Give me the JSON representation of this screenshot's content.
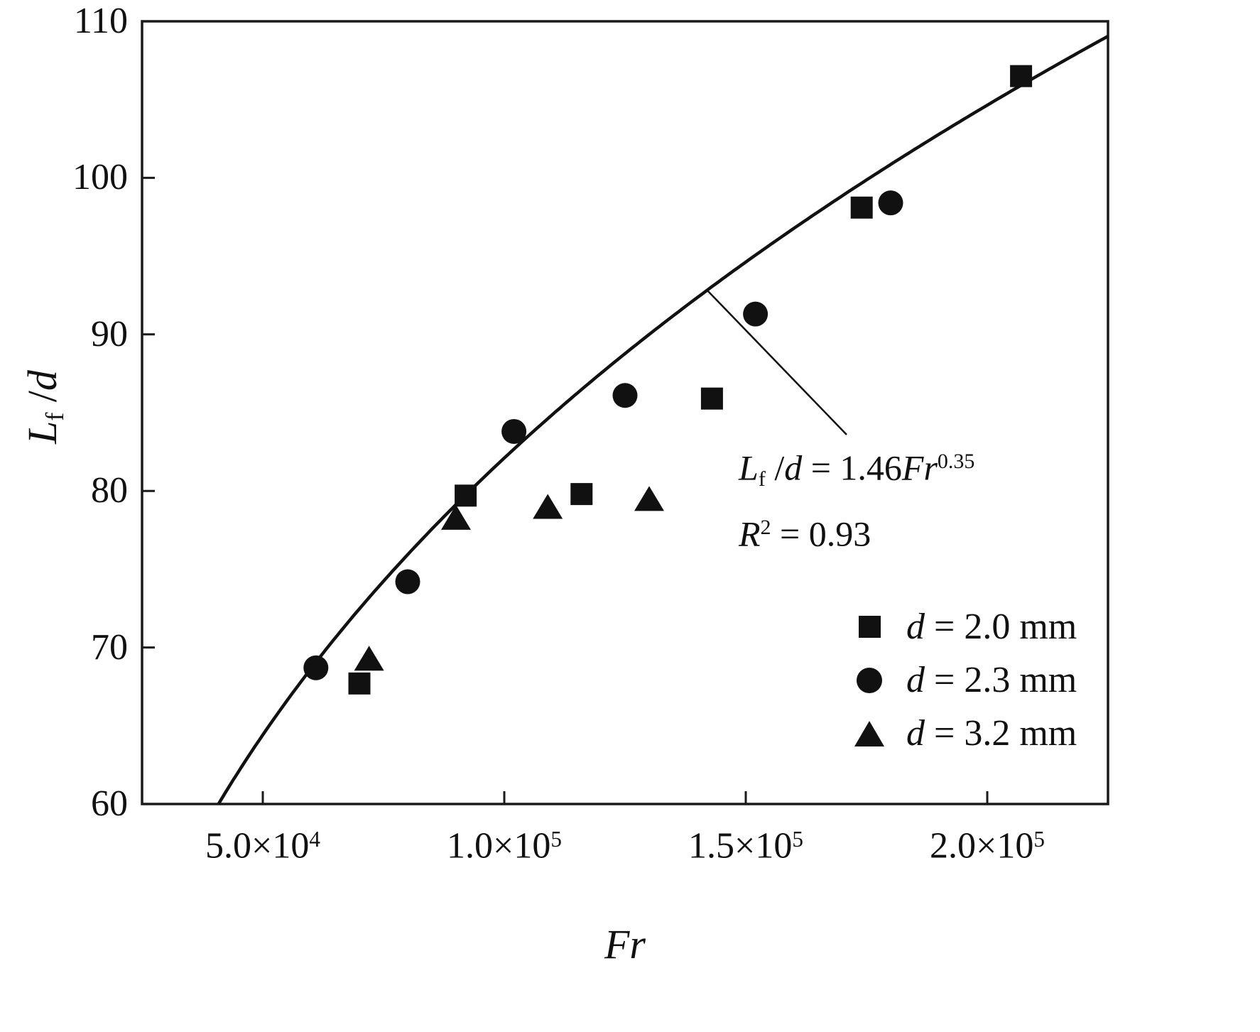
{
  "page": {
    "background": "#ffffff",
    "ink": "#111111"
  },
  "chart_data": {
    "type": "scatter",
    "title": "",
    "xlabel": "Fr",
    "ylabel": "Lf/d",
    "ylabel_parts": {
      "sym1": "L",
      "sub1": "f",
      "sep": " /",
      "sym2": "d"
    },
    "xlim": [
      25000,
      225000
    ],
    "ylim": [
      60,
      110
    ],
    "grid": false,
    "legend_position": "lower-right",
    "x_ticks": [
      {
        "value": 50000,
        "mantissa": "5.0×10",
        "exponent": "4"
      },
      {
        "value": 100000,
        "mantissa": "1.0×10",
        "exponent": "5"
      },
      {
        "value": 150000,
        "mantissa": "1.5×10",
        "exponent": "5"
      },
      {
        "value": 200000,
        "mantissa": "2.0×10",
        "exponent": "5"
      }
    ],
    "y_ticks": [
      60,
      70,
      80,
      90,
      100,
      110
    ],
    "series": [
      {
        "name": "d = 2.0 mm",
        "marker": "square",
        "points": [
          [
            70000,
            67.7
          ],
          [
            92000,
            79.7
          ],
          [
            116000,
            79.8
          ],
          [
            143000,
            85.9
          ],
          [
            174000,
            98.1
          ],
          [
            207000,
            106.5
          ]
        ]
      },
      {
        "name": "d = 2.3 mm",
        "marker": "circle",
        "points": [
          [
            61000,
            68.7
          ],
          [
            80000,
            74.2
          ],
          [
            102000,
            83.8
          ],
          [
            125000,
            86.1
          ],
          [
            152000,
            91.3
          ],
          [
            180000,
            98.4
          ]
        ]
      },
      {
        "name": "d = 3.2 mm",
        "marker": "triangle",
        "points": [
          [
            72000,
            69.2
          ],
          [
            90000,
            78.2
          ],
          [
            109000,
            78.9
          ],
          [
            130000,
            79.4
          ]
        ]
      }
    ],
    "fit": {
      "type": "power",
      "coefficient": 1.46,
      "exponent": 0.35,
      "r_squared": 0.93,
      "equation_text": "Lf/d = 1.46Fr^0.35"
    },
    "annotation": {
      "pointer_from_fr": 142000,
      "line1": {
        "sym1": "L",
        "sub1": "f",
        "sep": " /",
        "sym2": "d",
        "eq": " = 1.46",
        "sym3": "Fr",
        "sup": "0.35"
      },
      "line2": {
        "sym": "R",
        "sup": "2",
        "rest": " = 0.93"
      }
    }
  },
  "legend": {
    "items": [
      {
        "var": "d",
        "rest": " = 2.0 mm",
        "marker": "square"
      },
      {
        "var": "d",
        "rest": " = 2.3 mm",
        "marker": "circle"
      },
      {
        "var": "d",
        "rest": " = 3.2 mm",
        "marker": "triangle"
      }
    ]
  }
}
